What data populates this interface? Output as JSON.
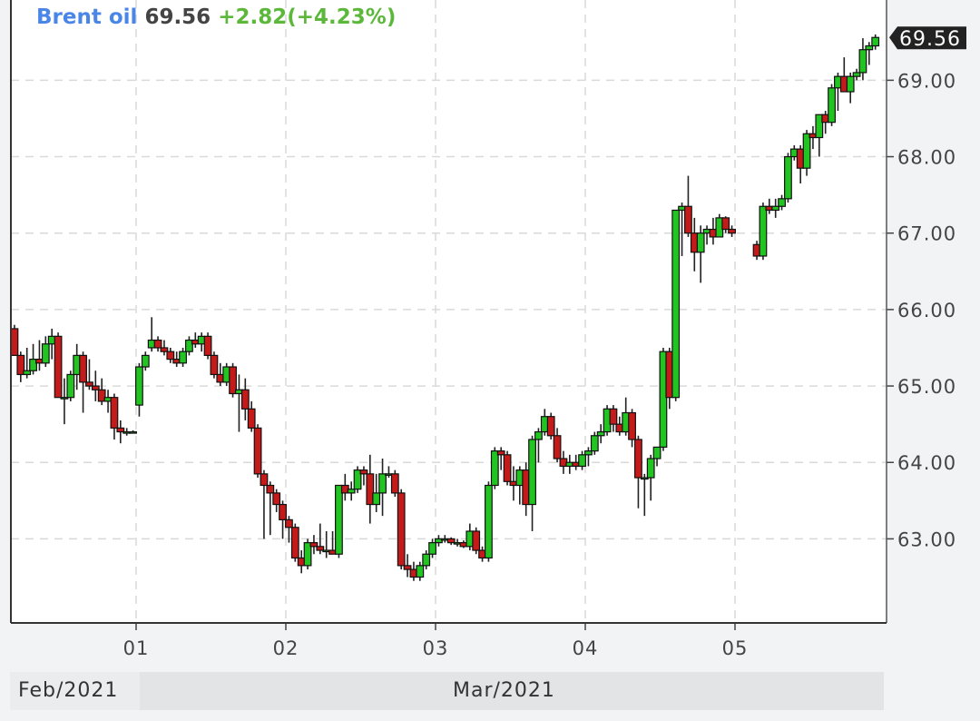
{
  "header": {
    "name": "Brent oil",
    "price": "69.56",
    "change": "+2.82(+4.23%)"
  },
  "periods": {
    "left": "Feb/2021",
    "right": "Mar/2021"
  },
  "colors": {
    "up": "#22c422",
    "down": "#c41a1a",
    "grid": "#d9d9d9",
    "label_bg": "#222222",
    "title_name": "#4a86e8",
    "title_change": "#5cb83a"
  },
  "chart_data": {
    "type": "candlestick",
    "title": "Brent oil",
    "interval": "1 hour",
    "last_price_label": "69.56",
    "ylim": [
      61.9,
      70.05
    ],
    "yticks": [
      "63.00",
      "64.00",
      "65.00",
      "66.00",
      "67.00",
      "68.00",
      "69.00"
    ],
    "xticks": [
      "01",
      "02",
      "03",
      "04",
      "05"
    ],
    "grid": true,
    "days": [
      {
        "date": "2021-02-26",
        "start_hour": 4,
        "ohlc": [
          [
            65.75,
            65.8,
            65.4,
            65.4
          ],
          [
            65.4,
            65.45,
            65.05,
            65.15
          ],
          [
            65.15,
            65.5,
            65.1,
            65.2
          ],
          [
            65.2,
            65.55,
            65.15,
            65.35
          ],
          [
            65.35,
            65.6,
            65.2,
            65.3
          ],
          [
            65.3,
            65.65,
            65.25,
            65.55
          ],
          [
            65.55,
            65.75,
            65.35,
            65.65
          ],
          [
            65.65,
            65.7,
            64.85,
            64.85
          ],
          [
            64.85,
            65.1,
            64.5,
            64.85
          ],
          [
            64.85,
            65.2,
            64.8,
            65.15
          ],
          [
            65.15,
            65.55,
            64.95,
            65.4
          ],
          [
            65.4,
            65.45,
            64.65,
            65.05
          ],
          [
            65.05,
            65.35,
            64.95,
            65.0
          ],
          [
            65.0,
            65.2,
            64.8,
            64.95
          ],
          [
            64.95,
            65.1,
            64.75,
            64.8
          ],
          [
            64.8,
            64.95,
            64.65,
            64.85
          ],
          [
            64.85,
            64.9,
            64.3,
            64.45
          ],
          [
            64.45,
            64.55,
            64.25,
            64.4
          ],
          [
            64.4,
            64.45,
            64.35,
            64.4
          ],
          [
            64.4,
            64.42,
            64.38,
            64.4
          ]
        ]
      },
      {
        "date": "2021-03-01",
        "label": "01",
        "start_hour": 0,
        "ohlc": [
          [
            64.75,
            65.3,
            64.6,
            65.25
          ],
          [
            65.25,
            65.45,
            65.2,
            65.4
          ],
          [
            65.5,
            65.9,
            65.45,
            65.6
          ],
          [
            65.6,
            65.65,
            65.45,
            65.5
          ],
          [
            65.5,
            65.6,
            65.4,
            65.45
          ],
          [
            65.45,
            65.5,
            65.3,
            65.35
          ],
          [
            65.35,
            65.45,
            65.25,
            65.3
          ],
          [
            65.3,
            65.5,
            65.25,
            65.45
          ],
          [
            65.45,
            65.65,
            65.4,
            65.6
          ],
          [
            65.6,
            65.7,
            65.5,
            65.55
          ],
          [
            65.55,
            65.7,
            65.45,
            65.65
          ],
          [
            65.65,
            65.7,
            65.35,
            65.4
          ],
          [
            65.4,
            65.45,
            65.1,
            65.15
          ],
          [
            65.15,
            65.3,
            65.0,
            65.05
          ],
          [
            65.05,
            65.3,
            65.0,
            65.25
          ],
          [
            65.25,
            65.3,
            64.85,
            64.9
          ],
          [
            64.9,
            65.15,
            64.4,
            64.95
          ],
          [
            64.95,
            65.1,
            64.55,
            64.7
          ],
          [
            64.7,
            64.8,
            64.4,
            64.45
          ],
          [
            64.45,
            64.5,
            63.8,
            63.85
          ],
          [
            63.85,
            63.9,
            63.0,
            63.7
          ],
          [
            63.7,
            63.75,
            63.05,
            63.6
          ],
          [
            63.6,
            63.65,
            63.35,
            63.45
          ],
          [
            63.45,
            63.5,
            63.0,
            63.25
          ]
        ]
      },
      {
        "date": "2021-03-02",
        "label": "02",
        "start_hour": 0,
        "ohlc": [
          [
            63.25,
            63.3,
            62.95,
            63.15
          ],
          [
            63.15,
            63.2,
            62.7,
            62.75
          ],
          [
            62.75,
            62.85,
            62.55,
            62.65
          ],
          [
            62.65,
            63.0,
            62.6,
            62.95
          ],
          [
            62.95,
            63.05,
            62.8,
            62.9
          ],
          [
            62.9,
            63.2,
            62.8,
            62.85
          ],
          [
            62.85,
            63.1,
            62.75,
            62.85
          ],
          [
            62.85,
            63.1,
            62.8,
            62.8
          ],
          [
            62.8,
            63.7,
            62.75,
            63.7
          ],
          [
            63.7,
            63.85,
            63.5,
            63.6
          ],
          [
            63.6,
            63.75,
            63.5,
            63.65
          ],
          [
            63.65,
            63.95,
            63.6,
            63.9
          ],
          [
            63.9,
            63.95,
            63.7,
            63.85
          ],
          [
            63.85,
            64.1,
            63.2,
            63.45
          ],
          [
            63.45,
            63.85,
            63.35,
            63.6
          ],
          [
            63.6,
            64.05,
            63.3,
            63.85
          ],
          [
            63.85,
            63.95,
            63.8,
            63.85
          ],
          [
            63.85,
            63.9,
            63.55,
            63.6
          ],
          [
            63.6,
            63.65,
            62.6,
            62.65
          ],
          [
            62.65,
            62.8,
            62.5,
            62.6
          ],
          [
            62.6,
            62.7,
            62.45,
            62.5
          ],
          [
            62.5,
            62.7,
            62.45,
            62.65
          ],
          [
            62.65,
            62.85,
            62.6,
            62.8
          ],
          [
            62.8,
            63.0,
            62.75,
            62.95
          ]
        ]
      },
      {
        "date": "2021-03-03",
        "label": "03",
        "start_hour": 0,
        "ohlc": [
          [
            62.95,
            63.05,
            62.9,
            63.0
          ],
          [
            63.0,
            63.05,
            62.95,
            63.0
          ],
          [
            63.0,
            63.02,
            62.92,
            62.95
          ],
          [
            62.95,
            63.0,
            62.9,
            62.95
          ],
          [
            62.95,
            62.98,
            62.88,
            62.9
          ],
          [
            62.9,
            63.2,
            62.85,
            63.1
          ],
          [
            63.1,
            63.15,
            62.8,
            62.85
          ],
          [
            62.85,
            62.9,
            62.7,
            62.75
          ],
          [
            62.75,
            63.75,
            62.7,
            63.7
          ],
          [
            63.7,
            64.2,
            63.65,
            64.15
          ],
          [
            64.15,
            64.2,
            63.9,
            64.1
          ],
          [
            64.1,
            64.15,
            63.7,
            63.75
          ],
          [
            63.75,
            63.95,
            63.5,
            63.7
          ],
          [
            63.7,
            63.95,
            63.45,
            63.9
          ],
          [
            63.9,
            64.0,
            63.3,
            63.45
          ],
          [
            63.45,
            64.35,
            63.1,
            64.3
          ],
          [
            64.3,
            64.45,
            64.0,
            64.4
          ],
          [
            64.4,
            64.7,
            64.35,
            64.6
          ],
          [
            64.6,
            64.65,
            64.3,
            64.35
          ],
          [
            64.35,
            64.45,
            64.0,
            64.05
          ],
          [
            64.05,
            64.15,
            63.85,
            63.95
          ],
          [
            63.95,
            64.1,
            63.85,
            64.0
          ],
          [
            64.0,
            64.1,
            63.9,
            63.95
          ],
          [
            63.95,
            64.15,
            63.9,
            64.1
          ]
        ]
      },
      {
        "date": "2021-03-04",
        "label": "04",
        "start_hour": 0,
        "ohlc": [
          [
            64.1,
            64.2,
            63.95,
            64.15
          ],
          [
            64.15,
            64.4,
            64.1,
            64.35
          ],
          [
            64.35,
            64.5,
            64.25,
            64.4
          ],
          [
            64.4,
            64.75,
            64.35,
            64.7
          ],
          [
            64.7,
            64.75,
            64.4,
            64.5
          ],
          [
            64.5,
            64.6,
            64.35,
            64.4
          ],
          [
            64.4,
            64.85,
            64.35,
            64.65
          ],
          [
            64.65,
            64.7,
            64.2,
            64.3
          ],
          [
            64.3,
            64.35,
            63.4,
            63.8
          ],
          [
            63.8,
            63.85,
            63.3,
            63.8
          ],
          [
            63.8,
            64.1,
            63.5,
            64.05
          ],
          [
            64.05,
            64.2,
            63.95,
            64.2
          ],
          [
            64.2,
            65.5,
            64.15,
            65.45
          ],
          [
            65.45,
            65.5,
            64.7,
            64.85
          ],
          [
            64.85,
            67.3,
            64.8,
            67.3
          ],
          [
            67.3,
            67.4,
            66.7,
            67.35
          ],
          [
            67.35,
            67.75,
            66.95,
            67.0
          ],
          [
            67.0,
            67.2,
            66.5,
            66.75
          ],
          [
            66.75,
            67.1,
            66.35,
            67.0
          ],
          [
            67.0,
            67.1,
            66.85,
            67.05
          ],
          [
            67.05,
            67.2,
            66.85,
            66.95
          ],
          [
            66.95,
            67.25,
            66.95,
            67.2
          ],
          [
            67.2,
            67.22,
            67.0,
            67.05
          ],
          [
            67.05,
            67.1,
            66.95,
            67.0
          ]
        ]
      },
      {
        "date": "2021-03-05",
        "label": "05",
        "start_hour": 3,
        "ohlc": [
          [
            66.85,
            66.9,
            66.65,
            66.7
          ],
          [
            66.7,
            67.4,
            66.65,
            67.35
          ],
          [
            67.35,
            67.45,
            67.25,
            67.3
          ],
          [
            67.3,
            67.45,
            67.2,
            67.35
          ],
          [
            67.35,
            67.5,
            67.3,
            67.45
          ],
          [
            67.45,
            68.05,
            67.4,
            68.0
          ],
          [
            68.0,
            68.15,
            67.95,
            68.1
          ],
          [
            68.1,
            68.15,
            67.65,
            67.85
          ],
          [
            67.85,
            68.35,
            67.75,
            68.3
          ],
          [
            68.3,
            68.4,
            68.1,
            68.25
          ],
          [
            68.25,
            68.55,
            68.0,
            68.55
          ],
          [
            68.55,
            68.6,
            68.3,
            68.45
          ],
          [
            68.45,
            68.95,
            68.4,
            68.9
          ],
          [
            68.9,
            69.1,
            68.6,
            69.05
          ],
          [
            69.05,
            69.3,
            68.85,
            68.85
          ],
          [
            68.85,
            69.1,
            68.7,
            69.05
          ],
          [
            69.05,
            69.15,
            69.0,
            69.1
          ],
          [
            69.1,
            69.55,
            69.0,
            69.4
          ],
          [
            69.4,
            69.5,
            69.2,
            69.45
          ],
          [
            69.45,
            69.6,
            69.4,
            69.56
          ]
        ]
      }
    ]
  }
}
